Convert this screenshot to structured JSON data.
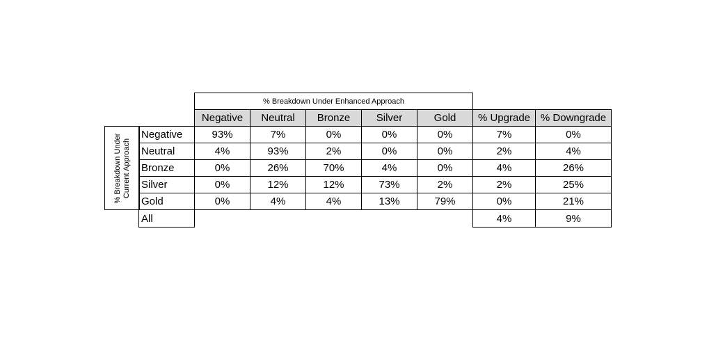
{
  "table": {
    "column_group": "% Breakdown Under Enhanced Approach",
    "row_group": "% Breakdown Under Current Approach",
    "columns": [
      "Negative",
      "Neutral",
      "Bronze",
      "Silver",
      "Gold",
      "% Upgrade",
      "% Downgrade"
    ],
    "rows": [
      {
        "label": "Negative",
        "cells": [
          "93%",
          "7%",
          "0%",
          "0%",
          "0%",
          "7%",
          "0%"
        ]
      },
      {
        "label": "Neutral",
        "cells": [
          "4%",
          "93%",
          "2%",
          "0%",
          "0%",
          "2%",
          "4%"
        ]
      },
      {
        "label": "Bronze",
        "cells": [
          "0%",
          "26%",
          "70%",
          "4%",
          "0%",
          "4%",
          "26%"
        ]
      },
      {
        "label": "Silver",
        "cells": [
          "0%",
          "12%",
          "12%",
          "73%",
          "2%",
          "2%",
          "25%"
        ]
      },
      {
        "label": "Gold",
        "cells": [
          "0%",
          "4%",
          "4%",
          "13%",
          "79%",
          "0%",
          "21%"
        ]
      }
    ],
    "total": {
      "label": "All",
      "cells": [
        "4%",
        "9%"
      ]
    }
  }
}
